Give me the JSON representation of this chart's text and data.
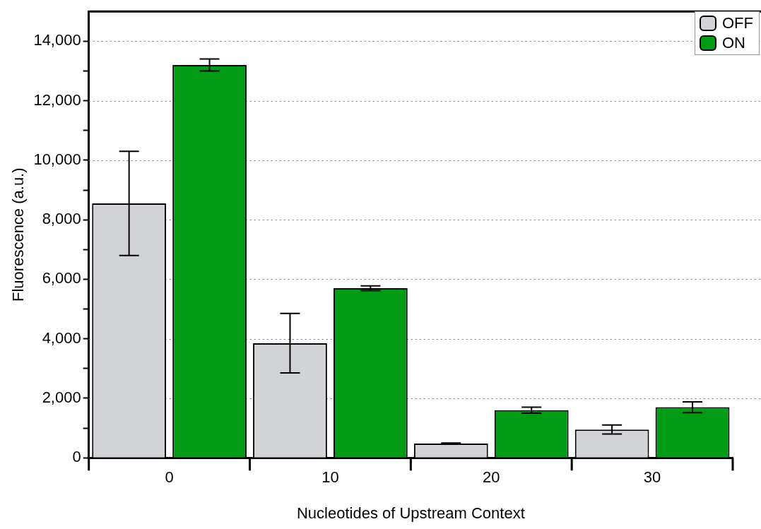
{
  "chart_data": {
    "type": "bar",
    "xlabel": "Nucleotides of Upstream Context",
    "ylabel": "Fluorescence (a.u.)",
    "categories": [
      "0",
      "10",
      "20",
      "30"
    ],
    "series": [
      {
        "name": "OFF",
        "color": "#d1d3d6",
        "values": [
          8550,
          3850,
          480,
          950
        ],
        "errors": [
          1750,
          1000,
          20,
          150
        ]
      },
      {
        "name": "ON",
        "color": "#039a15",
        "values": [
          13200,
          5700,
          1600,
          1700
        ],
        "errors": [
          200,
          80,
          100,
          180
        ]
      }
    ],
    "ylim": [
      0,
      15000
    ],
    "yticks": [
      0,
      {
        "value": 1000,
        "label": null
      },
      {
        "value": 2000,
        "label": "2,000"
      },
      {
        "value": 3000,
        "label": null
      },
      {
        "value": 4000,
        "label": "4,000"
      },
      {
        "value": 5000,
        "label": null
      },
      {
        "value": 6000,
        "label": "6,000"
      },
      {
        "value": 7000,
        "label": null
      },
      {
        "value": 8000,
        "label": "8,000"
      },
      {
        "value": 9000,
        "label": null
      },
      {
        "value": 10000,
        "label": "10,000"
      },
      {
        "value": 11000,
        "label": null
      },
      {
        "value": 12000,
        "label": "12,000"
      },
      {
        "value": 13000,
        "label": null
      },
      {
        "value": 14000,
        "label": "14,000"
      }
    ],
    "grid": "y",
    "legend": "top right"
  }
}
